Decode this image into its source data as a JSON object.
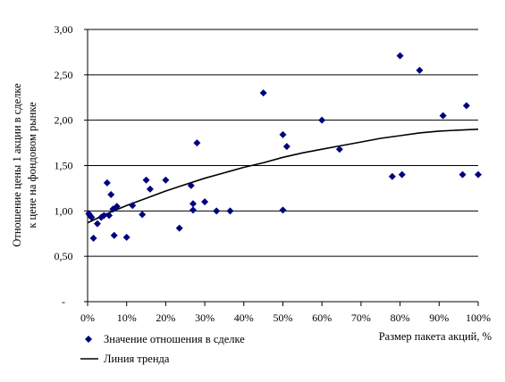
{
  "chart_data": {
    "type": "scatter",
    "ylabel_line1": "Отношение цены 1 акции в сделке",
    "ylabel_line2": "к цене на фондовом рынке",
    "xlabel": "Размер пакета акций, %",
    "xlim": [
      0,
      100
    ],
    "ylim": [
      0,
      3
    ],
    "x_ticks": [
      "0%",
      "10%",
      "20%",
      "30%",
      "40%",
      "50%",
      "60%",
      "70%",
      "80%",
      "90%",
      "100%"
    ],
    "y_ticks": [
      "-",
      "0,50",
      "1,00",
      "1,50",
      "2,00",
      "2,50",
      "3,00"
    ],
    "grid": "horizontal",
    "legend_position": "bottom-left",
    "series": [
      {
        "name": "Значение отношения в сделке",
        "kind": "markers",
        "marker": "diamond",
        "color": "#000080",
        "points": [
          [
            0.3,
            0.97
          ],
          [
            0.6,
            0.95
          ],
          [
            1.0,
            0.93
          ],
          [
            1.5,
            0.7
          ],
          [
            2.5,
            0.86
          ],
          [
            3.5,
            0.93
          ],
          [
            4.2,
            0.95
          ],
          [
            5.0,
            1.31
          ],
          [
            5.5,
            0.95
          ],
          [
            6.0,
            1.18
          ],
          [
            6.5,
            1.02
          ],
          [
            6.8,
            0.73
          ],
          [
            7.5,
            1.05
          ],
          [
            10.0,
            0.71
          ],
          [
            11.5,
            1.06
          ],
          [
            14.0,
            0.96
          ],
          [
            15.0,
            1.34
          ],
          [
            16.0,
            1.24
          ],
          [
            20.0,
            1.34
          ],
          [
            23.5,
            0.81
          ],
          [
            26.5,
            1.28
          ],
          [
            27.0,
            1.08
          ],
          [
            27.0,
            1.01
          ],
          [
            28.0,
            1.75
          ],
          [
            30.0,
            1.1
          ],
          [
            33.0,
            1.0
          ],
          [
            36.5,
            1.0
          ],
          [
            45.0,
            2.3
          ],
          [
            50.0,
            1.01
          ],
          [
            50.0,
            1.84
          ],
          [
            51.0,
            1.71
          ],
          [
            60.0,
            2.0
          ],
          [
            64.5,
            1.68
          ],
          [
            78.0,
            1.38
          ],
          [
            80.0,
            2.71
          ],
          [
            80.5,
            1.4
          ],
          [
            85.0,
            2.55
          ],
          [
            91.0,
            2.05
          ],
          [
            96.0,
            1.4
          ],
          [
            97.0,
            2.16
          ],
          [
            100.0,
            1.4
          ]
        ]
      },
      {
        "name": "Линия тренда",
        "kind": "line",
        "color": "#000000",
        "points": [
          [
            0,
            0.87
          ],
          [
            5,
            0.97
          ],
          [
            10,
            1.06
          ],
          [
            15,
            1.14
          ],
          [
            20,
            1.22
          ],
          [
            25,
            1.29
          ],
          [
            30,
            1.36
          ],
          [
            35,
            1.42
          ],
          [
            40,
            1.48
          ],
          [
            45,
            1.53
          ],
          [
            50,
            1.59
          ],
          [
            55,
            1.64
          ],
          [
            60,
            1.68
          ],
          [
            65,
            1.72
          ],
          [
            70,
            1.76
          ],
          [
            75,
            1.8
          ],
          [
            80,
            1.83
          ],
          [
            85,
            1.86
          ],
          [
            90,
            1.88
          ],
          [
            95,
            1.89
          ],
          [
            100,
            1.9
          ]
        ]
      }
    ]
  }
}
